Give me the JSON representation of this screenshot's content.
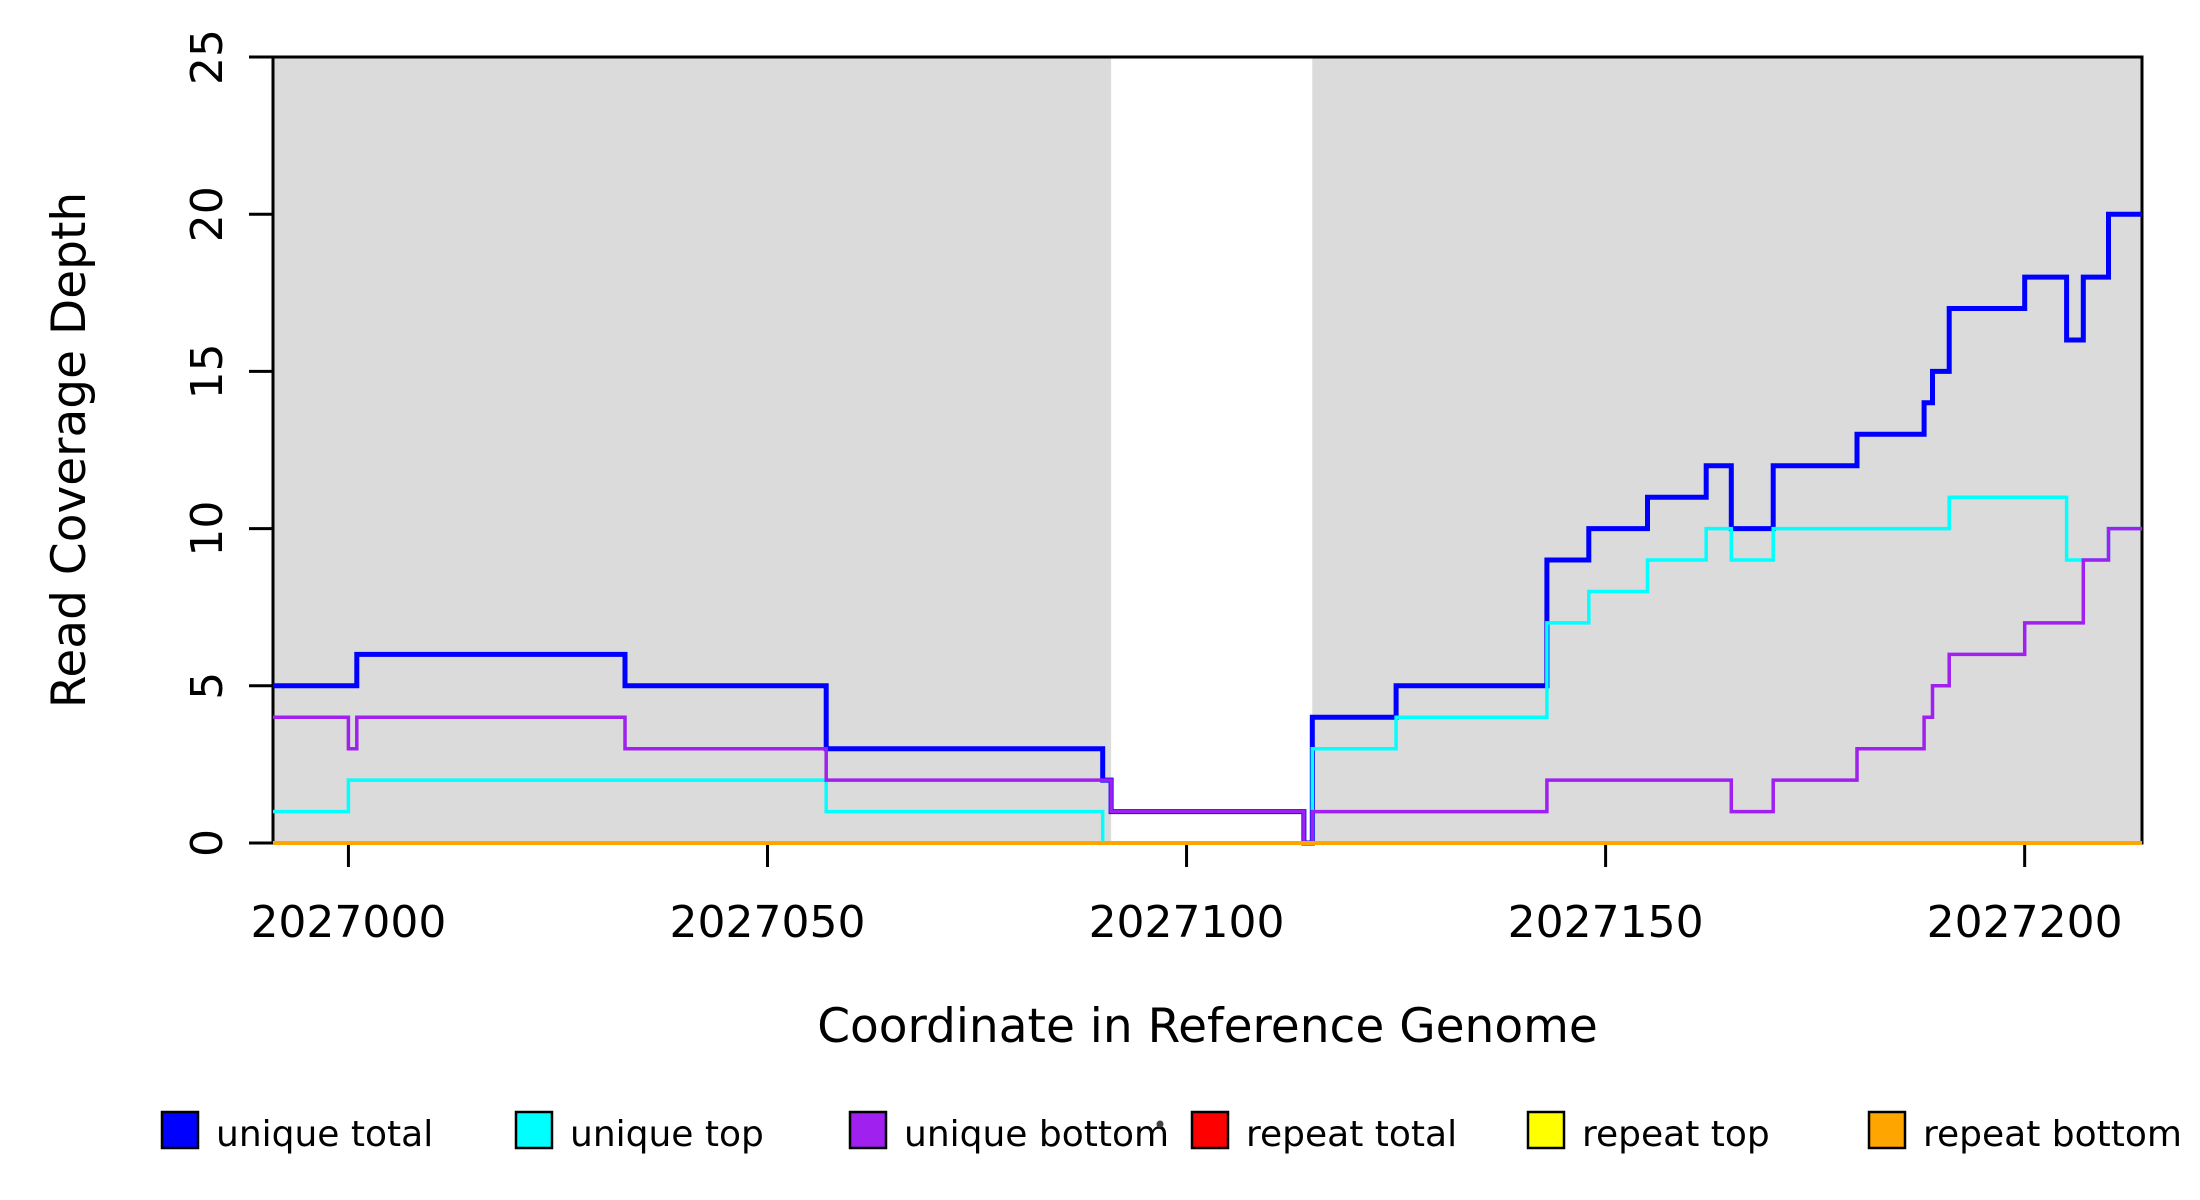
{
  "chart_data": {
    "type": "line",
    "subtype": "step",
    "title": "",
    "xlabel": "Coordinate in Reference Genome",
    "ylabel": "Read Coverage Depth",
    "xlim": [
      2026991,
      2027214
    ],
    "ylim": [
      0,
      25
    ],
    "x_ticks": [
      2027000,
      2027050,
      2027100,
      2027150,
      2027200
    ],
    "y_ticks": [
      0,
      5,
      10,
      15,
      20,
      25
    ],
    "grid": false,
    "legend_position": "bottom",
    "plot_background": "#ffffff",
    "shading": {
      "color": "#DBDBDB",
      "regions": [
        [
          2026991,
          2027091
        ],
        [
          2027115,
          2027214
        ]
      ]
    },
    "series": [
      {
        "name": "unique-total",
        "label": "unique total",
        "color": "#0000FF",
        "line_width": 5,
        "steps": [
          [
            2026991,
            5
          ],
          [
            2027001,
            6
          ],
          [
            2027033,
            5
          ],
          [
            2027057,
            3
          ],
          [
            2027090,
            2
          ],
          [
            2027091,
            1
          ],
          [
            2027114,
            0
          ],
          [
            2027115,
            4
          ],
          [
            2027125,
            5
          ],
          [
            2027143,
            9
          ],
          [
            2027148,
            10
          ],
          [
            2027155,
            11
          ],
          [
            2027162,
            12
          ],
          [
            2027165,
            10
          ],
          [
            2027170,
            12
          ],
          [
            2027180,
            13
          ],
          [
            2027188,
            14
          ],
          [
            2027189,
            15
          ],
          [
            2027191,
            17
          ],
          [
            2027200,
            18
          ],
          [
            2027205,
            16
          ],
          [
            2027207,
            18
          ],
          [
            2027210,
            20
          ]
        ]
      },
      {
        "name": "unique-top",
        "label": "unique top",
        "color": "#00FFFF",
        "line_width": 3.5,
        "steps": [
          [
            2026991,
            1
          ],
          [
            2027000,
            2
          ],
          [
            2027057,
            1
          ],
          [
            2027090,
            0
          ],
          [
            2027115,
            3
          ],
          [
            2027125,
            4
          ],
          [
            2027143,
            7
          ],
          [
            2027148,
            8
          ],
          [
            2027155,
            9
          ],
          [
            2027162,
            10
          ],
          [
            2027165,
            9
          ],
          [
            2027170,
            10
          ],
          [
            2027191,
            11
          ],
          [
            2027205,
            9
          ],
          [
            2027210,
            10
          ]
        ]
      },
      {
        "name": "unique-bottom",
        "label": "unique bottom",
        "color": "#A020F0",
        "line_width": 3.5,
        "steps": [
          [
            2026991,
            4
          ],
          [
            2027000,
            3
          ],
          [
            2027001,
            4
          ],
          [
            2027033,
            3
          ],
          [
            2027057,
            2
          ],
          [
            2027091,
            1
          ],
          [
            2027114,
            0
          ],
          [
            2027115,
            1
          ],
          [
            2027143,
            2
          ],
          [
            2027165,
            1
          ],
          [
            2027170,
            2
          ],
          [
            2027180,
            3
          ],
          [
            2027188,
            4
          ],
          [
            2027189,
            5
          ],
          [
            2027191,
            6
          ],
          [
            2027200,
            7
          ],
          [
            2027207,
            9
          ],
          [
            2027210,
            10
          ]
        ]
      },
      {
        "name": "repeat-total",
        "label": "repeat total",
        "color": "#FF0000",
        "line_width": 3.5,
        "steps": [
          [
            2026991,
            0
          ]
        ]
      },
      {
        "name": "repeat-top",
        "label": "repeat top",
        "color": "#FFFF00",
        "line_width": 3.5,
        "steps": [
          [
            2026991,
            0
          ]
        ]
      },
      {
        "name": "repeat-bottom",
        "label": "repeat bottom",
        "color": "#FFA500",
        "line_width": 4,
        "steps": [
          [
            2026991,
            0
          ]
        ]
      }
    ]
  }
}
